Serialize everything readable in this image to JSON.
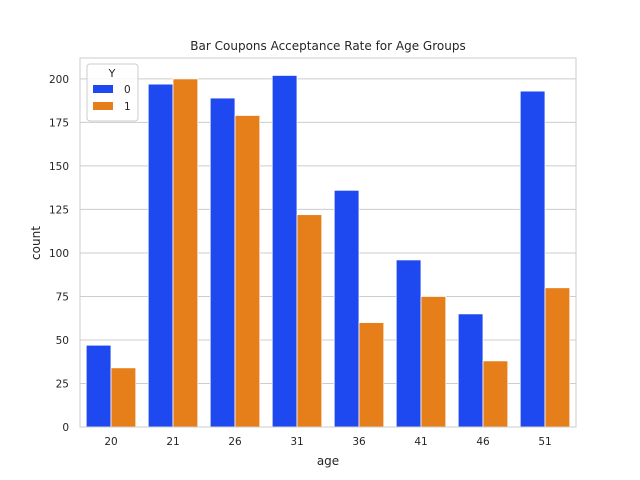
{
  "chart_data": {
    "type": "bar",
    "title": "Bar Coupons Acceptance Rate for Age Groups",
    "xlabel": "age",
    "ylabel": "count",
    "categories": [
      "20",
      "21",
      "26",
      "31",
      "36",
      "41",
      "46",
      "51"
    ],
    "series": [
      {
        "name": "0",
        "color": "#1f49f0",
        "values": [
          47,
          197,
          189,
          202,
          136,
          96,
          65,
          193
        ]
      },
      {
        "name": "1",
        "color": "#e67e1a",
        "values": [
          34,
          200,
          179,
          122,
          60,
          75,
          38,
          80
        ]
      }
    ],
    "ylim": [
      0,
      212
    ],
    "yticks": [
      0,
      25,
      50,
      75,
      100,
      125,
      150,
      175,
      200
    ],
    "grid": true,
    "legend": {
      "title": "Y",
      "placement": "upper left"
    }
  }
}
